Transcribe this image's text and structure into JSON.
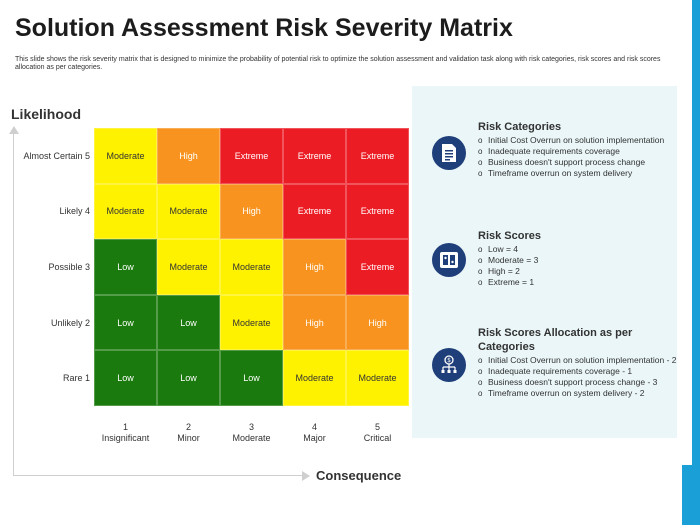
{
  "title": "Solution Assessment Risk Severity Matrix",
  "subtitle": "This slide shows the risk severity matrix that is designed to minimize  the probability of potential risk to optimize the solution assessment and validation task along with risk categories, risk scores and risk scores allocation as per categories.",
  "axes": {
    "y_label": "Likelihood",
    "x_label": "Consequence"
  },
  "rows": [
    {
      "label": "Almost Certain 5",
      "cells": [
        {
          "text": "Moderate",
          "level": "moderate"
        },
        {
          "text": "High",
          "level": "high"
        },
        {
          "text": "Extreme",
          "level": "extreme"
        },
        {
          "text": "Extreme",
          "level": "extreme"
        },
        {
          "text": "Extreme",
          "level": "extreme"
        }
      ]
    },
    {
      "label": "Likely 4",
      "cells": [
        {
          "text": "Moderate",
          "level": "moderate"
        },
        {
          "text": "Moderate",
          "level": "moderate"
        },
        {
          "text": "High",
          "level": "high"
        },
        {
          "text": "Extreme",
          "level": "extreme"
        },
        {
          "text": "Extreme",
          "level": "extreme"
        }
      ]
    },
    {
      "label": "Possible 3",
      "cells": [
        {
          "text": "Low",
          "level": "low"
        },
        {
          "text": "Moderate",
          "level": "moderate"
        },
        {
          "text": "Moderate",
          "level": "moderate"
        },
        {
          "text": "High",
          "level": "high"
        },
        {
          "text": "Extreme",
          "level": "extreme"
        }
      ]
    },
    {
      "label": "Unlikely 2",
      "cells": [
        {
          "text": "Low",
          "level": "low"
        },
        {
          "text": "Low",
          "level": "low"
        },
        {
          "text": "Moderate",
          "level": "moderate"
        },
        {
          "text": "High",
          "level": "high"
        },
        {
          "text": "High",
          "level": "high"
        }
      ]
    },
    {
      "label": "Rare 1",
      "cells": [
        {
          "text": "Low",
          "level": "low"
        },
        {
          "text": "Low",
          "level": "low"
        },
        {
          "text": "Low",
          "level": "low"
        },
        {
          "text": "Moderate",
          "level": "moderate"
        },
        {
          "text": "Moderate",
          "level": "moderate"
        }
      ]
    }
  ],
  "columns": [
    {
      "num": "1",
      "name": "Insignificant"
    },
    {
      "num": "2",
      "name": "Minor"
    },
    {
      "num": "3",
      "name": "Moderate"
    },
    {
      "num": "4",
      "name": "Major"
    },
    {
      "num": "5",
      "name": "Critical"
    }
  ],
  "colors": {
    "low": "#1b7a0e",
    "moderate": "#fff200",
    "high": "#f7931e",
    "extreme": "#ec1c24",
    "panel_bg": "#eaf6f8",
    "icon_bg": "#1f3f7a",
    "accent": "#1a9fd6"
  },
  "panel": {
    "risk_categories": {
      "icon": "document-list-icon",
      "title": "Risk Categories",
      "items": [
        "Initial Cost Overrun  on solution implementation",
        "Inadequate requirements coverage",
        "Business doesn't support process change",
        "Timeframe  overrun  on system delivery"
      ]
    },
    "risk_scores": {
      "icon": "scoreboard-icon",
      "title": "Risk Scores",
      "items": [
        "Low = 4",
        "Moderate  = 3",
        "High = 2",
        "Extreme = 1"
      ]
    },
    "allocation": {
      "icon": "money-hierarchy-icon",
      "title": "Risk Scores Allocation as per Categories",
      "items": [
        "Initial Cost Overrun  on solution implementation  - 2",
        "Inadequate requirements coverage  - 1",
        "Business doesn't support process change  - 3",
        "Timeframe  overrun  on system delivery  - 2"
      ]
    }
  }
}
